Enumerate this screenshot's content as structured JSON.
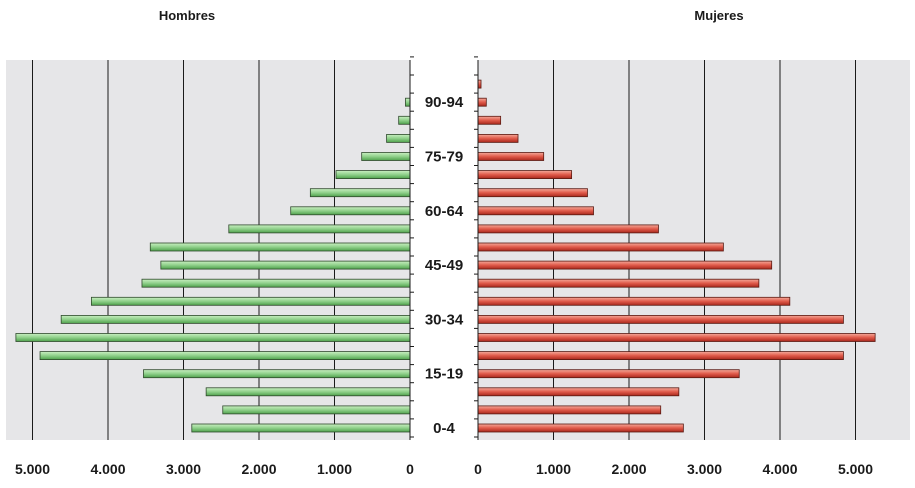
{
  "chart_data": {
    "type": "bar",
    "orientation": "horizontal",
    "layout": "population-pyramid",
    "categories": [
      "0-4",
      "5-9",
      "10-14",
      "15-19",
      "20-24",
      "25-29",
      "30-34",
      "35-39",
      "40-44",
      "45-49",
      "50-54",
      "55-59",
      "60-64",
      "65-69",
      "70-74",
      "75-79",
      "80-84",
      "85-89",
      "90-94",
      "95-99",
      "100+"
    ],
    "category_labels_shown": [
      "0-4",
      "15-19",
      "30-34",
      "45-49",
      "60-64",
      "75-79",
      "90-94"
    ],
    "series": [
      {
        "name": "Hombres",
        "color": "#8fd08a",
        "values": [
          2890,
          2480,
          2700,
          3530,
          4900,
          5220,
          4620,
          4220,
          3550,
          3300,
          3440,
          2400,
          1580,
          1320,
          980,
          640,
          310,
          150,
          60,
          0,
          0
        ]
      },
      {
        "name": "Mujeres",
        "color": "#e05a4a",
        "values": [
          2720,
          2420,
          2660,
          3460,
          4840,
          5260,
          4840,
          4130,
          3720,
          3890,
          3250,
          2390,
          1530,
          1450,
          1240,
          870,
          530,
          300,
          110,
          40,
          0
        ]
      }
    ],
    "xticks": [
      5000,
      4000,
      3000,
      2000,
      1000,
      0
    ],
    "xtick_labels": [
      "5.000",
      "4.000",
      "3.000",
      "2.000",
      "1.000",
      "0"
    ],
    "xlim": [
      0,
      5000
    ],
    "grid": true
  }
}
